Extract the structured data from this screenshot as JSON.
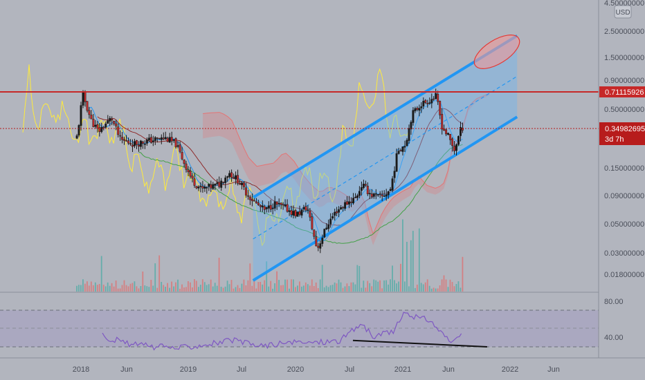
{
  "currency_badge": "USD",
  "price_axis": {
    "labels": [
      "4.50000000",
      "2.50000000",
      "1.50000000",
      "0.90000000",
      "0.50000000",
      "0.15000000",
      "0.09000000",
      "0.05000000",
      "0.03000000",
      "0.01800000"
    ]
  },
  "price_tags": {
    "resistance": "0.71115926",
    "current": "0.34982695",
    "countdown": "3d 7h"
  },
  "rsi_axis": {
    "labels": [
      "80.00",
      "40.00"
    ]
  },
  "time_axis": {
    "labels": [
      "2018",
      "Jun",
      "2019",
      "Jul",
      "2020",
      "Jul",
      "2021",
      "Jun",
      "2022",
      "Jun"
    ]
  },
  "colors": {
    "background": "#b2b5be",
    "resistance_line": "#c62828",
    "current_price": "#b71c1c",
    "channel": "#2196f3",
    "rsi_line": "#7e57c2",
    "up_candle": "#26a69a",
    "down_candle": "#c62828"
  },
  "chart_data": {
    "type": "candlestick",
    "scale": "log",
    "timeframe_period": "1 week",
    "price_range": [
      0.012,
      5.0
    ],
    "resistance_level": 0.71115926,
    "current_price": 0.34982695,
    "series": [
      {
        "name": "price",
        "values": [
          {
            "t": "2017-10-15",
            "c": 0.08
          },
          {
            "t": "2017-12-20",
            "c": 0.3
          },
          {
            "t": "2018-01-07",
            "c": 0.68
          },
          {
            "t": "2018-02-05",
            "c": 0.4
          },
          {
            "t": "2018-03-01",
            "c": 0.32
          },
          {
            "t": "2018-04-15",
            "c": 0.42
          },
          {
            "t": "2018-05-15",
            "c": 0.27
          },
          {
            "t": "2018-07-01",
            "c": 0.25
          },
          {
            "t": "2018-09-01",
            "c": 0.27
          },
          {
            "t": "2018-10-15",
            "c": 0.28
          },
          {
            "t": "2018-11-20",
            "c": 0.25
          },
          {
            "t": "2018-12-15",
            "c": 0.18
          },
          {
            "t": "2019-01-15",
            "c": 0.12
          },
          {
            "t": "2019-02-15",
            "c": 0.1
          },
          {
            "t": "2019-04-15",
            "c": 0.11
          },
          {
            "t": "2019-05-20",
            "c": 0.14
          },
          {
            "t": "2019-06-20",
            "c": 0.12
          },
          {
            "t": "2019-07-20",
            "c": 0.092
          },
          {
            "t": "2019-08-20",
            "c": 0.075
          },
          {
            "t": "2019-09-20",
            "c": 0.065
          },
          {
            "t": "2019-10-20",
            "c": 0.075
          },
          {
            "t": "2019-12-01",
            "c": 0.068
          },
          {
            "t": "2020-01-05",
            "c": 0.06
          },
          {
            "t": "2020-02-10",
            "c": 0.07
          },
          {
            "t": "2020-03-15",
            "c": 0.03
          },
          {
            "t": "2020-04-20",
            "c": 0.05
          },
          {
            "t": "2020-05-20",
            "c": 0.065
          },
          {
            "t": "2020-06-20",
            "c": 0.075
          },
          {
            "t": "2020-07-25",
            "c": 0.085
          },
          {
            "t": "2020-08-15",
            "c": 0.11
          },
          {
            "t": "2020-09-15",
            "c": 0.09
          },
          {
            "t": "2020-10-20",
            "c": 0.085
          },
          {
            "t": "2020-11-20",
            "c": 0.1
          },
          {
            "t": "2020-12-15",
            "c": 0.22
          },
          {
            "t": "2021-01-10",
            "c": 0.25
          },
          {
            "t": "2021-02-01",
            "c": 0.45
          },
          {
            "t": "2021-03-01",
            "c": 0.55
          },
          {
            "t": "2021-04-01",
            "c": 0.6
          },
          {
            "t": "2021-04-25",
            "c": 0.65
          },
          {
            "t": "2021-05-15",
            "c": 0.35
          },
          {
            "t": "2021-06-05",
            "c": 0.29
          },
          {
            "t": "2021-06-25",
            "c": 0.22
          },
          {
            "t": "2021-07-20",
            "c": 0.35
          }
        ]
      }
    ],
    "ascending_channel": {
      "lower": [
        {
          "t": "2019-08-10",
          "p": 0.016
        },
        {
          "t": "2022-01-25",
          "p": 0.43
        }
      ],
      "upper": [
        {
          "t": "2019-08-10",
          "p": 0.085
        },
        {
          "t": "2022-01-25",
          "p": 2.2
        }
      ]
    },
    "rsi": {
      "range": [
        20,
        100
      ],
      "levels": [
        80,
        40
      ],
      "values": [
        {
          "t": "2018-03-15",
          "v": 52
        },
        {
          "t": "2018-06-01",
          "v": 44
        },
        {
          "t": "2018-09-01",
          "v": 40
        },
        {
          "t": "2018-12-01",
          "v": 39
        },
        {
          "t": "2019-03-01",
          "v": 43
        },
        {
          "t": "2019-06-01",
          "v": 47
        },
        {
          "t": "2019-09-01",
          "v": 41
        },
        {
          "t": "2019-12-01",
          "v": 44
        },
        {
          "t": "2020-03-01",
          "v": 45
        },
        {
          "t": "2020-06-01",
          "v": 47
        },
        {
          "t": "2020-08-15",
          "v": 66
        },
        {
          "t": "2020-09-20",
          "v": 50
        },
        {
          "t": "2020-12-01",
          "v": 58
        },
        {
          "t": "2021-01-10",
          "v": 78
        },
        {
          "t": "2021-02-15",
          "v": 72
        },
        {
          "t": "2021-04-01",
          "v": 70
        },
        {
          "t": "2021-05-15",
          "v": 55
        },
        {
          "t": "2021-06-20",
          "v": 43
        },
        {
          "t": "2021-07-20",
          "v": 52
        }
      ],
      "divergence_line": [
        {
          "t": "2020-07-15",
          "v": 47
        },
        {
          "t": "2021-10-15",
          "v": 40
        }
      ]
    }
  }
}
